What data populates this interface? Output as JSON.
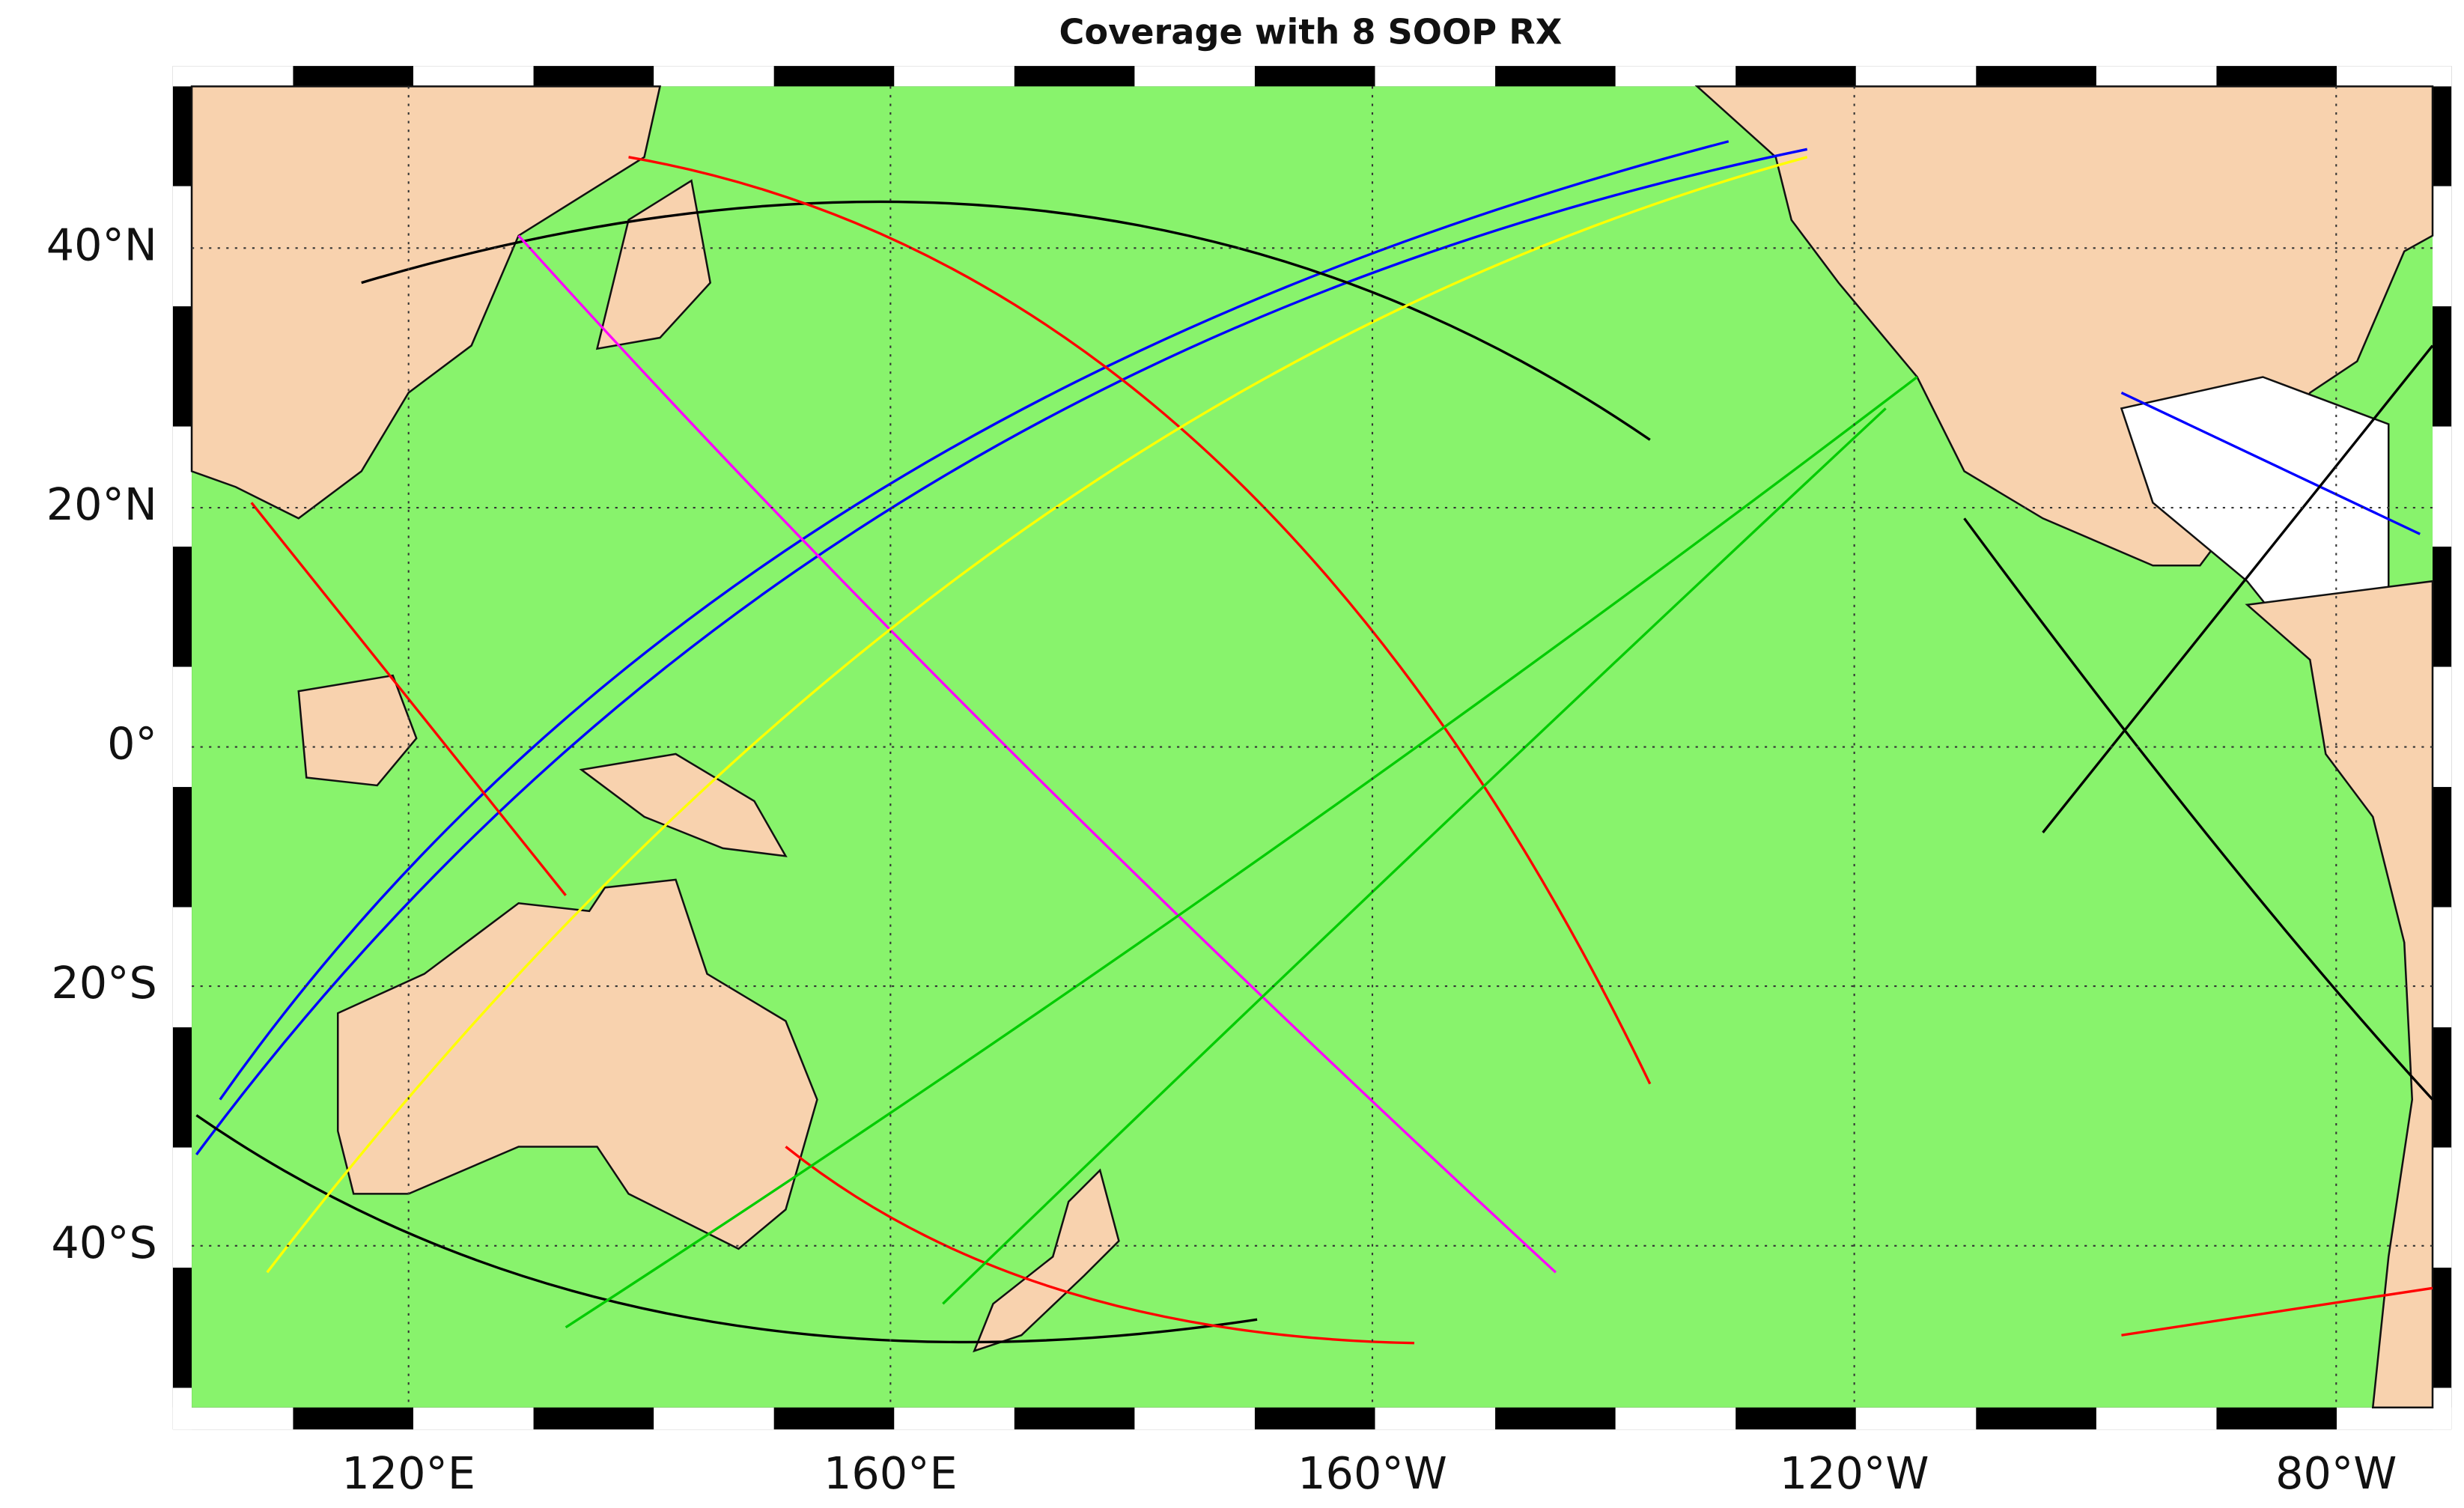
{
  "chart_data": {
    "type": "map",
    "title": "Coverage with 8 SOOP RX",
    "projection": "miller",
    "xlim": [
      102,
      288
    ],
    "ylim": [
      -51,
      51
    ],
    "xticks": [
      {
        "value": 120,
        "label": "120°E"
      },
      {
        "value": 160,
        "label": "160°E"
      },
      {
        "value": 200,
        "label": "160°W"
      },
      {
        "value": 240,
        "label": "120°W"
      },
      {
        "value": 280,
        "label": "80°W"
      }
    ],
    "yticks": [
      {
        "value": 40,
        "label": "40°N"
      },
      {
        "value": 20,
        "label": "20°N"
      },
      {
        "value": 0,
        "label": "0°"
      },
      {
        "value": -20,
        "label": "20°S"
      },
      {
        "value": -40,
        "label": "40°S"
      }
    ],
    "grid": true,
    "ocean_color": "#88f36c",
    "land_color": "#f8d2ae"
  }
}
